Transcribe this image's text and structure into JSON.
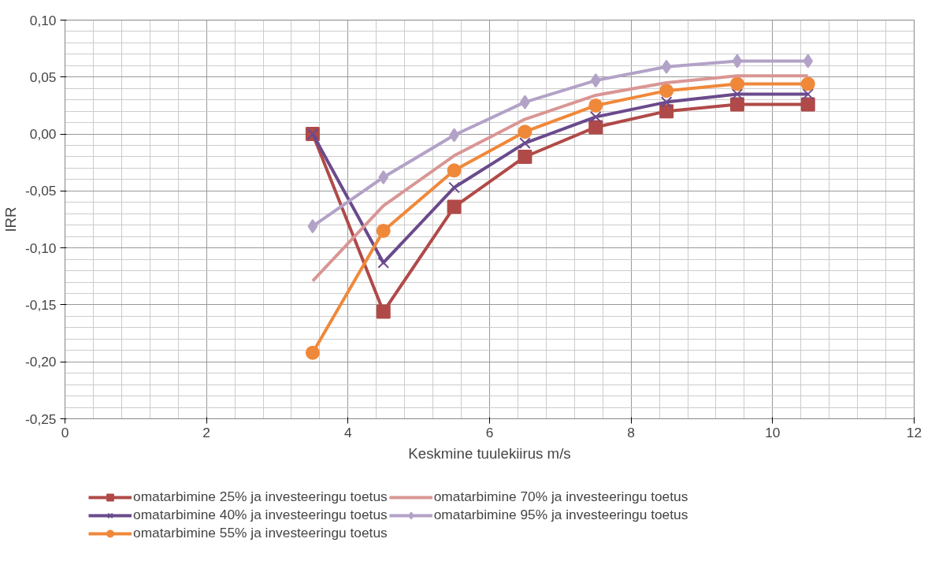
{
  "chart_data": {
    "type": "line",
    "xlabel": "Keskmine tuulekiirus m/s",
    "ylabel": "IRR",
    "x": [
      3.5,
      4.5,
      5.5,
      6.5,
      7.5,
      8.5,
      9.5,
      10.5
    ],
    "xlim": [
      0,
      12
    ],
    "xticks": [
      0,
      2,
      4,
      6,
      8,
      10,
      12
    ],
    "ylim": [
      -0.25,
      0.1
    ],
    "yticks": [
      {
        "value": -0.25,
        "label": "-0,25"
      },
      {
        "value": -0.2,
        "label": "-0,20"
      },
      {
        "value": -0.15,
        "label": "-0,15"
      },
      {
        "value": -0.1,
        "label": "-0,10"
      },
      {
        "value": -0.05,
        "label": "-0,05"
      },
      {
        "value": 0,
        "label": "0,00"
      },
      {
        "value": 0.05,
        "label": "0,05"
      },
      {
        "value": 0.1,
        "label": "0,10"
      }
    ],
    "grid": true,
    "legend": "bottom",
    "line_style": "solid",
    "series": [
      {
        "name": "omatarbimine 25% ja investeeringu toetus",
        "color": "#b04a48",
        "marker": "square",
        "values": [
          0.0,
          -0.156,
          -0.064,
          -0.02,
          0.006,
          0.02,
          0.026,
          0.026
        ]
      },
      {
        "name": "omatarbimine 40% ja investeeringu toetus",
        "color": "#6a4a8c",
        "marker": "cross",
        "values": [
          0.0,
          -0.113,
          -0.047,
          -0.008,
          0.015,
          0.028,
          0.035,
          0.035
        ]
      },
      {
        "name": "omatarbimine 55% ja investeeringu toetus",
        "color": "#f0883a",
        "marker": "circle",
        "values": [
          -0.192,
          -0.085,
          -0.032,
          0.002,
          0.025,
          0.038,
          0.044,
          0.044
        ]
      },
      {
        "name": "omatarbimine 70% ja investeeringu toetus",
        "color": "#d99694",
        "marker": "none",
        "values": [
          -0.129,
          -0.063,
          -0.019,
          0.013,
          0.034,
          0.045,
          0.051,
          0.051
        ]
      },
      {
        "name": "omatarbimine 95% ja investeeringu toetus",
        "color": "#b3a2c7",
        "marker": "diamond",
        "values": [
          -0.081,
          -0.038,
          -0.001,
          0.028,
          0.047,
          0.059,
          0.064,
          0.064
        ]
      }
    ]
  }
}
